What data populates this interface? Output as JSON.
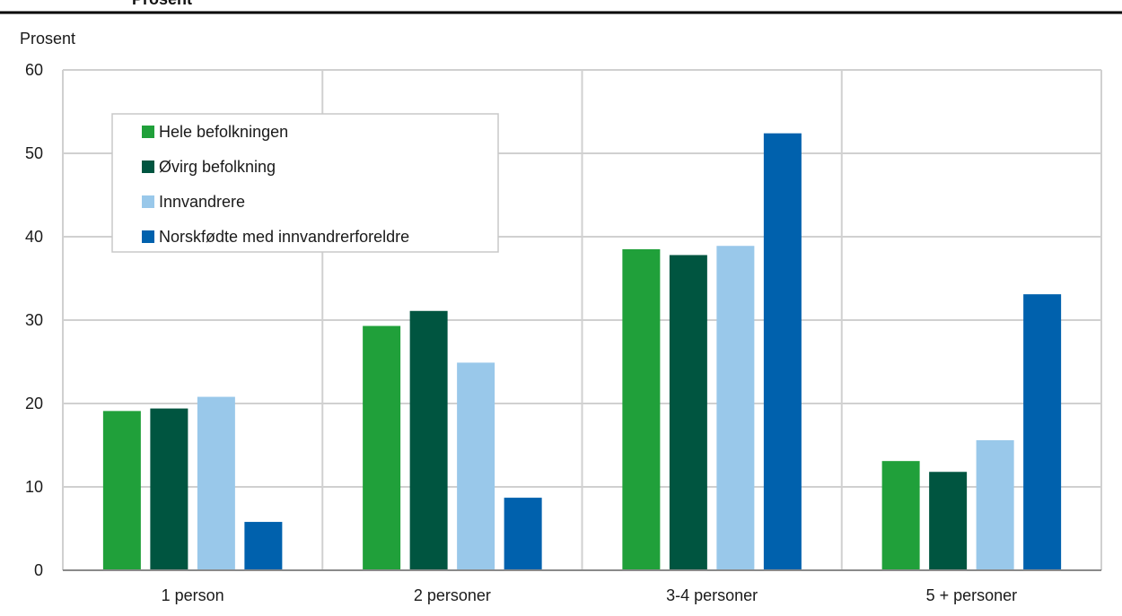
{
  "header": {
    "caption": "Prosent"
  },
  "colors": {
    "hele": "#20a03a",
    "ovrig": "#005540",
    "innvandrere": "#99c8ea",
    "norskfodte": "#0061ad",
    "grid": "#d0d0d0",
    "axis": "#8a8a8a",
    "rule": "#000000"
  },
  "chart_data": {
    "type": "bar",
    "title": "",
    "xlabel": "",
    "ylabel": "Prosent",
    "ylim": [
      0,
      60
    ],
    "yticks": [
      0,
      10,
      20,
      30,
      40,
      50,
      60
    ],
    "grid": true,
    "legend_position": "top-left",
    "categories": [
      "1 person",
      "2 personer",
      "3-4 personer",
      "5 + personer"
    ],
    "series": [
      {
        "name": "Hele befolkningen",
        "color_key": "hele",
        "values": [
          19.1,
          29.3,
          38.5,
          13.1
        ]
      },
      {
        "name": "Øvirg befolkning",
        "color_key": "ovrig",
        "values": [
          19.4,
          31.1,
          37.8,
          11.8
        ]
      },
      {
        "name": "Innvandrere",
        "color_key": "innvandrere",
        "values": [
          20.8,
          24.9,
          38.9,
          15.6
        ]
      },
      {
        "name": "Norskfødte med innvandrerforeldre",
        "color_key": "norskfodte",
        "values": [
          5.8,
          8.7,
          52.4,
          33.1
        ]
      }
    ]
  }
}
